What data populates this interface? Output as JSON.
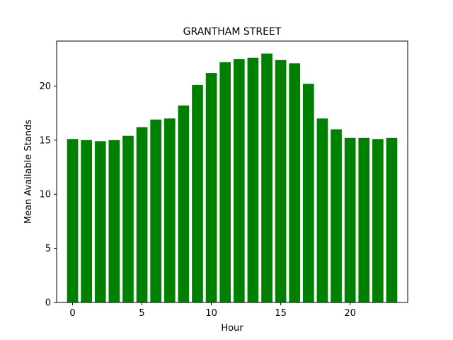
{
  "chart_data": {
    "type": "bar",
    "title": "GRANTHAM STREET",
    "xlabel": "Hour",
    "ylabel": "Mean Available Stands",
    "categories": [
      0,
      1,
      2,
      3,
      4,
      5,
      6,
      7,
      8,
      9,
      10,
      11,
      12,
      13,
      14,
      15,
      16,
      17,
      18,
      19,
      20,
      21,
      22,
      23
    ],
    "values": [
      15.1,
      15.0,
      14.9,
      15.0,
      15.4,
      16.2,
      16.9,
      17.0,
      18.2,
      20.1,
      21.2,
      22.2,
      22.5,
      22.6,
      23.0,
      22.4,
      22.1,
      20.2,
      17.0,
      16.0,
      15.2,
      15.2,
      15.1,
      15.2
    ],
    "xlim": [
      -1.15,
      24.15
    ],
    "ylim": [
      0,
      24.15
    ],
    "xticks": [
      0,
      5,
      10,
      15,
      20
    ],
    "yticks": [
      0,
      5,
      10,
      15,
      20
    ],
    "bar_color": "#008000",
    "grid": false
  }
}
